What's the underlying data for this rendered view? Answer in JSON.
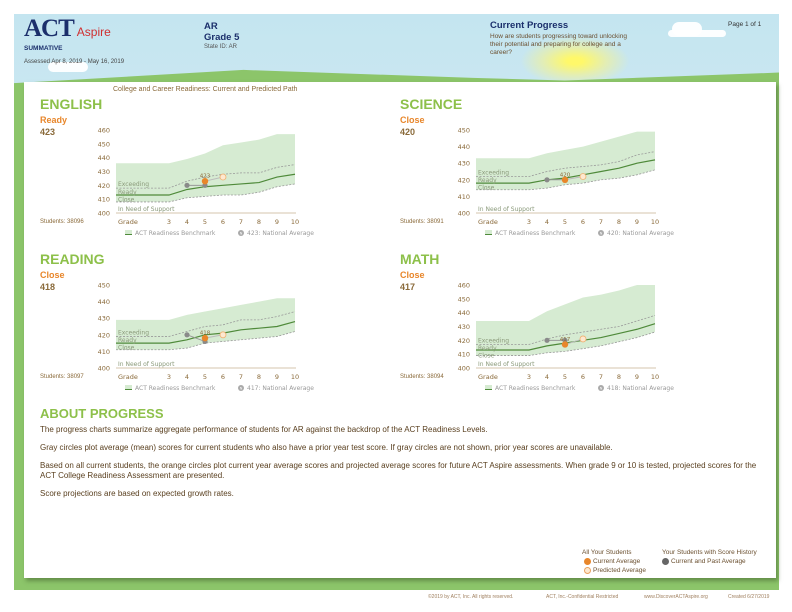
{
  "header": {
    "logo": "ACT Aspire",
    "assessment_type": "SUMMATIVE",
    "assessed_dates": "Assessed Apr 8, 2019 - May 16, 2019",
    "entity": "AR",
    "grade": "Grade 5",
    "state_id": "State ID: AR",
    "report_title": "Current Progress",
    "report_question": "How are students progressing toward unlocking their potential and preparing for college and a career?",
    "page": "Page 1 of 1"
  },
  "section_title": "College and Career Readiness: Current and Predicted Path",
  "colors": {
    "title_green": "#8dc04a",
    "orange": "#e8862a",
    "gray_dot": "#8a8a8a",
    "band": "#d6ebd2",
    "benchmark": "#4f8a3a"
  },
  "chart_labels": {
    "grade": "Grade",
    "zones": [
      "Exceeding",
      "Ready",
      "Close",
      "In Need of Support"
    ],
    "benchmark_legend": "ACT Readiness Benchmark",
    "national_icon": "N"
  },
  "chart_data": [
    {
      "type": "area",
      "subject": "ENGLISH",
      "status": "Ready",
      "score": "423",
      "students": "Students: 38096",
      "national_legend": "423: National Average",
      "ylim": [
        400,
        460
      ],
      "yticks": [
        400,
        410,
        420,
        430,
        440,
        450,
        460
      ],
      "grades": [
        3,
        4,
        5,
        6,
        7,
        8,
        9,
        10
      ],
      "band_top": [
        436,
        439,
        443,
        449,
        451,
        453,
        457,
        457
      ],
      "exceeding": [
        418,
        423,
        426,
        428,
        429,
        429,
        433,
        435
      ],
      "ready": [
        413,
        417,
        419,
        420,
        421,
        422,
        426,
        428
      ],
      "close": [
        408,
        411,
        412,
        413,
        413,
        415,
        419,
        421
      ],
      "past_avg": [
        {
          "grade": 4,
          "score": 420
        },
        {
          "grade": 5,
          "score": 420
        }
      ],
      "current": {
        "grade": 5,
        "score": 423,
        "label": "423"
      },
      "predicted": {
        "grade": 6,
        "score": 426
      }
    },
    {
      "type": "area",
      "subject": "SCIENCE",
      "status": "Close",
      "score": "420",
      "students": "Students: 38091",
      "national_legend": "420: National Average",
      "ylim": [
        400,
        450
      ],
      "yticks": [
        400,
        410,
        420,
        430,
        440,
        450
      ],
      "grades": [
        3,
        4,
        5,
        6,
        7,
        8,
        9,
        10
      ],
      "band_top": [
        433,
        436,
        438,
        440,
        443,
        446,
        449,
        449
      ],
      "exceeding": [
        422,
        425,
        427,
        428,
        429,
        431,
        435,
        437
      ],
      "ready": [
        418,
        420,
        421,
        423,
        425,
        427,
        430,
        432
      ],
      "close": [
        414,
        415,
        417,
        418,
        420,
        421,
        423,
        426
      ],
      "past_avg": [
        {
          "grade": 4,
          "score": 420
        },
        {
          "grade": 5,
          "score": 420
        }
      ],
      "current": {
        "grade": 5,
        "score": 420,
        "label": "420"
      },
      "predicted": {
        "grade": 6,
        "score": 422
      }
    },
    {
      "type": "area",
      "subject": "READING",
      "status": "Close",
      "score": "418",
      "students": "Students: 38097",
      "national_legend": "417: National Average",
      "ylim": [
        400,
        450
      ],
      "yticks": [
        400,
        410,
        420,
        430,
        440,
        450
      ],
      "grades": [
        3,
        4,
        5,
        6,
        7,
        8,
        9,
        10
      ],
      "band_top": [
        429,
        432,
        434,
        436,
        438,
        440,
        442,
        442
      ],
      "exceeding": [
        419,
        422,
        425,
        426,
        429,
        429,
        431,
        434
      ],
      "ready": [
        415,
        417,
        420,
        421,
        423,
        424,
        425,
        428
      ],
      "close": [
        411,
        412,
        415,
        416,
        417,
        418,
        419,
        422
      ],
      "past_avg": [
        {
          "grade": 4,
          "score": 420
        },
        {
          "grade": 5,
          "score": 416
        }
      ],
      "current": {
        "grade": 5,
        "score": 418,
        "label": "418"
      },
      "predicted": {
        "grade": 6,
        "score": 420
      }
    },
    {
      "type": "area",
      "subject": "MATH",
      "status": "Close",
      "score": "417",
      "students": "Students: 38094",
      "national_legend": "418: National Average",
      "ylim": [
        400,
        460
      ],
      "yticks": [
        400,
        410,
        420,
        430,
        440,
        450,
        460
      ],
      "grades": [
        3,
        4,
        5,
        6,
        7,
        8,
        9,
        10
      ],
      "band_top": [
        434,
        441,
        446,
        451,
        453,
        456,
        460,
        460
      ],
      "exceeding": [
        417,
        421,
        424,
        426,
        428,
        430,
        434,
        438
      ],
      "ready": [
        413,
        416,
        418,
        420,
        422,
        425,
        428,
        432
      ],
      "close": [
        409,
        411,
        412,
        414,
        416,
        419,
        422,
        426
      ],
      "past_avg": [
        {
          "grade": 4,
          "score": 420
        },
        {
          "grade": 5,
          "score": 420
        }
      ],
      "current": {
        "grade": 5,
        "score": 417,
        "label": "417"
      },
      "predicted": {
        "grade": 6,
        "score": 421
      }
    }
  ],
  "about": {
    "title": "ABOUT PROGRESS",
    "paragraphs": [
      "The progress charts summarize aggregate performance of students for AR against the backdrop of the ACT Readiness Levels.",
      "Gray circles plot average (mean) scores for current students who also have a prior year test score. If gray circles are not shown, prior year scores are unavailable.",
      "Based on all current students, the orange circles plot current year average scores and projected average scores for future ACT Aspire assessments. When grade 9 or 10 is tested, projected scores for the ACT College Readiness Assessment are presented.",
      "Score projections are based on expected growth rates."
    ]
  },
  "legend": {
    "all_title": "All Your Students",
    "current": "Current Average",
    "predicted": "Predicted Average",
    "history_title": "Your Students with Score History",
    "past": "Current and Past Average"
  },
  "footer": {
    "copyright": "©2019 by ACT, Inc. All rights reserved.",
    "confidential": "ACT, Inc.-Confidential Restricted",
    "url": "www.DiscoverACTAspire.org",
    "created": "Created 6/27/2019"
  }
}
